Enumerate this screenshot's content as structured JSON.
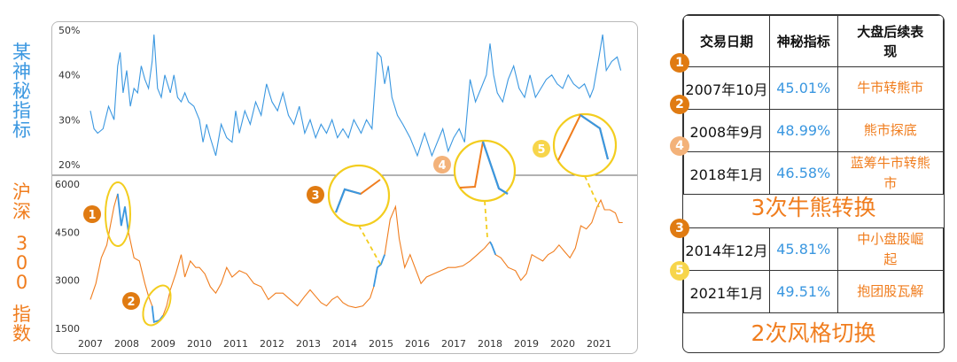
{
  "left_labels": {
    "top": [
      "某",
      "神",
      "秘",
      "指",
      "标"
    ],
    "bottom_chars": [
      "沪",
      "深"
    ],
    "bottom_num": [
      "3",
      "0",
      "0"
    ],
    "bottom_tail": [
      "指",
      "数"
    ]
  },
  "chart_data": {
    "type": "line",
    "x_ticks": [
      "2007",
      "2008",
      "2009",
      "2010",
      "2011",
      "2012",
      "2013",
      "2014",
      "2015",
      "2016",
      "2017",
      "2018",
      "2019",
      "2020",
      "2021"
    ],
    "top_panel": {
      "series_name": "某神秘指标",
      "y_ticks": [
        "50%",
        "40%",
        "30%",
        "20%"
      ],
      "ylim": [
        0.18,
        0.51
      ],
      "color": "#3a97e0",
      "points": [
        [
          2007.0,
          0.32
        ],
        [
          2007.1,
          0.28
        ],
        [
          2007.2,
          0.27
        ],
        [
          2007.35,
          0.28
        ],
        [
          2007.5,
          0.33
        ],
        [
          2007.65,
          0.3
        ],
        [
          2007.75,
          0.42
        ],
        [
          2007.82,
          0.45
        ],
        [
          2007.9,
          0.36
        ],
        [
          2008.0,
          0.41
        ],
        [
          2008.1,
          0.33
        ],
        [
          2008.2,
          0.37
        ],
        [
          2008.3,
          0.36
        ],
        [
          2008.4,
          0.42
        ],
        [
          2008.5,
          0.39
        ],
        [
          2008.6,
          0.37
        ],
        [
          2008.7,
          0.43
        ],
        [
          2008.75,
          0.49
        ],
        [
          2008.85,
          0.37
        ],
        [
          2008.95,
          0.35
        ],
        [
          2009.05,
          0.4
        ],
        [
          2009.2,
          0.36
        ],
        [
          2009.3,
          0.4
        ],
        [
          2009.4,
          0.35
        ],
        [
          2009.5,
          0.34
        ],
        [
          2009.6,
          0.36
        ],
        [
          2009.7,
          0.34
        ],
        [
          2009.85,
          0.33
        ],
        [
          2010.0,
          0.3
        ],
        [
          2010.1,
          0.25
        ],
        [
          2010.2,
          0.29
        ],
        [
          2010.3,
          0.26
        ],
        [
          2010.45,
          0.22
        ],
        [
          2010.6,
          0.29
        ],
        [
          2010.75,
          0.26
        ],
        [
          2010.9,
          0.25
        ],
        [
          2011.0,
          0.32
        ],
        [
          2011.1,
          0.27
        ],
        [
          2011.25,
          0.32
        ],
        [
          2011.4,
          0.29
        ],
        [
          2011.55,
          0.34
        ],
        [
          2011.7,
          0.31
        ],
        [
          2011.85,
          0.38
        ],
        [
          2012.0,
          0.34
        ],
        [
          2012.15,
          0.32
        ],
        [
          2012.3,
          0.36
        ],
        [
          2012.45,
          0.31
        ],
        [
          2012.6,
          0.29
        ],
        [
          2012.75,
          0.33
        ],
        [
          2012.9,
          0.27
        ],
        [
          2013.05,
          0.3
        ],
        [
          2013.2,
          0.26
        ],
        [
          2013.35,
          0.29
        ],
        [
          2013.5,
          0.27
        ],
        [
          2013.65,
          0.3
        ],
        [
          2013.8,
          0.26
        ],
        [
          2013.95,
          0.28
        ],
        [
          2014.1,
          0.26
        ],
        [
          2014.25,
          0.3
        ],
        [
          2014.45,
          0.27
        ],
        [
          2014.6,
          0.3
        ],
        [
          2014.75,
          0.28
        ],
        [
          2014.9,
          0.45
        ],
        [
          2015.0,
          0.44
        ],
        [
          2015.1,
          0.38
        ],
        [
          2015.2,
          0.42
        ],
        [
          2015.3,
          0.35
        ],
        [
          2015.45,
          0.31
        ],
        [
          2015.6,
          0.29
        ],
        [
          2015.8,
          0.26
        ],
        [
          2016.0,
          0.22
        ],
        [
          2016.2,
          0.27
        ],
        [
          2016.4,
          0.22
        ],
        [
          2016.55,
          0.25
        ],
        [
          2016.7,
          0.28
        ],
        [
          2016.85,
          0.23
        ],
        [
          2017.0,
          0.26
        ],
        [
          2017.15,
          0.28
        ],
        [
          2017.3,
          0.25
        ],
        [
          2017.45,
          0.39
        ],
        [
          2017.6,
          0.34
        ],
        [
          2017.75,
          0.37
        ],
        [
          2017.9,
          0.4
        ],
        [
          2018.0,
          0.47
        ],
        [
          2018.1,
          0.4
        ],
        [
          2018.2,
          0.36
        ],
        [
          2018.35,
          0.34
        ],
        [
          2018.5,
          0.39
        ],
        [
          2018.65,
          0.42
        ],
        [
          2018.8,
          0.37
        ],
        [
          2018.95,
          0.35
        ],
        [
          2019.1,
          0.4
        ],
        [
          2019.25,
          0.35
        ],
        [
          2019.4,
          0.37
        ],
        [
          2019.55,
          0.39
        ],
        [
          2019.7,
          0.4
        ],
        [
          2019.85,
          0.38
        ],
        [
          2020.0,
          0.37
        ],
        [
          2020.15,
          0.4
        ],
        [
          2020.3,
          0.38
        ],
        [
          2020.45,
          0.37
        ],
        [
          2020.6,
          0.38
        ],
        [
          2020.75,
          0.35
        ],
        [
          2020.85,
          0.37
        ],
        [
          2021.0,
          0.44
        ],
        [
          2021.1,
          0.49
        ],
        [
          2021.2,
          0.41
        ],
        [
          2021.35,
          0.43
        ],
        [
          2021.5,
          0.44
        ],
        [
          2021.6,
          0.41
        ]
      ]
    },
    "bottom_panel": {
      "series_name": "沪深300指数",
      "y_ticks": [
        "6000",
        "4500",
        "3000",
        "1500"
      ],
      "ylim": [
        1400,
        6200
      ],
      "color": "#f07d1e",
      "points": [
        [
          2007.0,
          2400
        ],
        [
          2007.15,
          2900
        ],
        [
          2007.3,
          3700
        ],
        [
          2007.45,
          4100
        ],
        [
          2007.55,
          4700
        ],
        [
          2007.65,
          5300
        ],
        [
          2007.75,
          5700
        ],
        [
          2007.85,
          4700
        ],
        [
          2007.95,
          5300
        ],
        [
          2008.05,
          4500
        ],
        [
          2008.2,
          3700
        ],
        [
          2008.35,
          3600
        ],
        [
          2008.5,
          2900
        ],
        [
          2008.6,
          2500
        ],
        [
          2008.7,
          2200
        ],
        [
          2008.75,
          1700
        ],
        [
          2008.9,
          1750
        ],
        [
          2009.0,
          1900
        ],
        [
          2009.1,
          2200
        ],
        [
          2009.2,
          2700
        ],
        [
          2009.35,
          3200
        ],
        [
          2009.5,
          3800
        ],
        [
          2009.6,
          3100
        ],
        [
          2009.75,
          3600
        ],
        [
          2009.9,
          3400
        ],
        [
          2010.0,
          3400
        ],
        [
          2010.15,
          3200
        ],
        [
          2010.3,
          2800
        ],
        [
          2010.45,
          2600
        ],
        [
          2010.6,
          2900
        ],
        [
          2010.75,
          3400
        ],
        [
          2010.9,
          3100
        ],
        [
          2011.1,
          3300
        ],
        [
          2011.3,
          3200
        ],
        [
          2011.5,
          2900
        ],
        [
          2011.7,
          2800
        ],
        [
          2011.9,
          2400
        ],
        [
          2012.1,
          2600
        ],
        [
          2012.3,
          2600
        ],
        [
          2012.5,
          2400
        ],
        [
          2012.7,
          2200
        ],
        [
          2012.9,
          2500
        ],
        [
          2013.05,
          2700
        ],
        [
          2013.2,
          2500
        ],
        [
          2013.35,
          2300
        ],
        [
          2013.5,
          2200
        ],
        [
          2013.65,
          2400
        ],
        [
          2013.8,
          2500
        ],
        [
          2013.95,
          2300
        ],
        [
          2014.1,
          2200
        ],
        [
          2014.3,
          2150
        ],
        [
          2014.5,
          2200
        ],
        [
          2014.7,
          2450
        ],
        [
          2014.8,
          2800
        ],
        [
          2014.9,
          3400
        ],
        [
          2015.0,
          3500
        ],
        [
          2015.1,
          3800
        ],
        [
          2015.25,
          4900
        ],
        [
          2015.4,
          5300
        ],
        [
          2015.5,
          4300
        ],
        [
          2015.65,
          3400
        ],
        [
          2015.8,
          3800
        ],
        [
          2016.0,
          3200
        ],
        [
          2016.1,
          2900
        ],
        [
          2016.25,
          3100
        ],
        [
          2016.45,
          3200
        ],
        [
          2016.65,
          3300
        ],
        [
          2016.85,
          3400
        ],
        [
          2017.05,
          3400
        ],
        [
          2017.25,
          3450
        ],
        [
          2017.45,
          3600
        ],
        [
          2017.65,
          3800
        ],
        [
          2017.85,
          4000
        ],
        [
          2018.0,
          4200
        ],
        [
          2018.05,
          4100
        ],
        [
          2018.15,
          3800
        ],
        [
          2018.3,
          3700
        ],
        [
          2018.5,
          3400
        ],
        [
          2018.7,
          3300
        ],
        [
          2018.85,
          3000
        ],
        [
          2019.0,
          3200
        ],
        [
          2019.15,
          3800
        ],
        [
          2019.3,
          3700
        ],
        [
          2019.45,
          3600
        ],
        [
          2019.6,
          3800
        ],
        [
          2019.75,
          3900
        ],
        [
          2019.9,
          4100
        ],
        [
          2020.05,
          3900
        ],
        [
          2020.2,
          3700
        ],
        [
          2020.35,
          4000
        ],
        [
          2020.5,
          4700
        ],
        [
          2020.65,
          4600
        ],
        [
          2020.8,
          4800
        ],
        [
          2020.95,
          5300
        ],
        [
          2021.05,
          5500
        ],
        [
          2021.15,
          5200
        ],
        [
          2021.3,
          5200
        ],
        [
          2021.45,
          5100
        ],
        [
          2021.55,
          4800
        ],
        [
          2021.65,
          4800
        ]
      ]
    },
    "highlights": [
      {
        "id": "1",
        "from": 2007.78,
        "to": 2008.05,
        "panel": "bottom"
      },
      {
        "id": "2",
        "from": 2008.75,
        "to": 2008.95,
        "panel": "bottom"
      },
      {
        "id": "3",
        "from": 2014.85,
        "to": 2015.05,
        "panel": "bottom"
      },
      {
        "id": "4",
        "from": 2017.95,
        "to": 2018.2,
        "panel": "bottom"
      },
      {
        "id": "5",
        "from": 2020.75,
        "to": 2021.1,
        "panel": "top"
      }
    ]
  },
  "table": {
    "headers": [
      "交易日期",
      "神秘指标",
      "大盘后续表现"
    ],
    "rows": [
      {
        "num": "1",
        "date": "2007年10月",
        "value": "45.01%",
        "perf": "牛市转熊市"
      },
      {
        "num": "2",
        "date": "2008年9月",
        "value": "48.99%",
        "perf": "熊市探底"
      },
      {
        "num": "4",
        "date": "2018年1月",
        "value": "46.58%",
        "perf": "蓝筹牛市转熊市"
      }
    ],
    "summary1": "3次牛熊转换",
    "rows2": [
      {
        "num": "3",
        "date": "2014年12月",
        "value": "45.81%",
        "perf": "中小盘股崛起"
      },
      {
        "num": "5",
        "date": "2021年1月",
        "value": "49.51%",
        "perf": "抱团股瓦解"
      }
    ],
    "summary2": "2次风格切换"
  },
  "colors": {
    "blue": "#3a97e0",
    "orange": "#f07d1e",
    "badge_dark": "#e07b12",
    "badge_light": "#f3b27a",
    "badge_yellow": "#f7d54a",
    "circle_yellow": "#f3cd1f"
  }
}
